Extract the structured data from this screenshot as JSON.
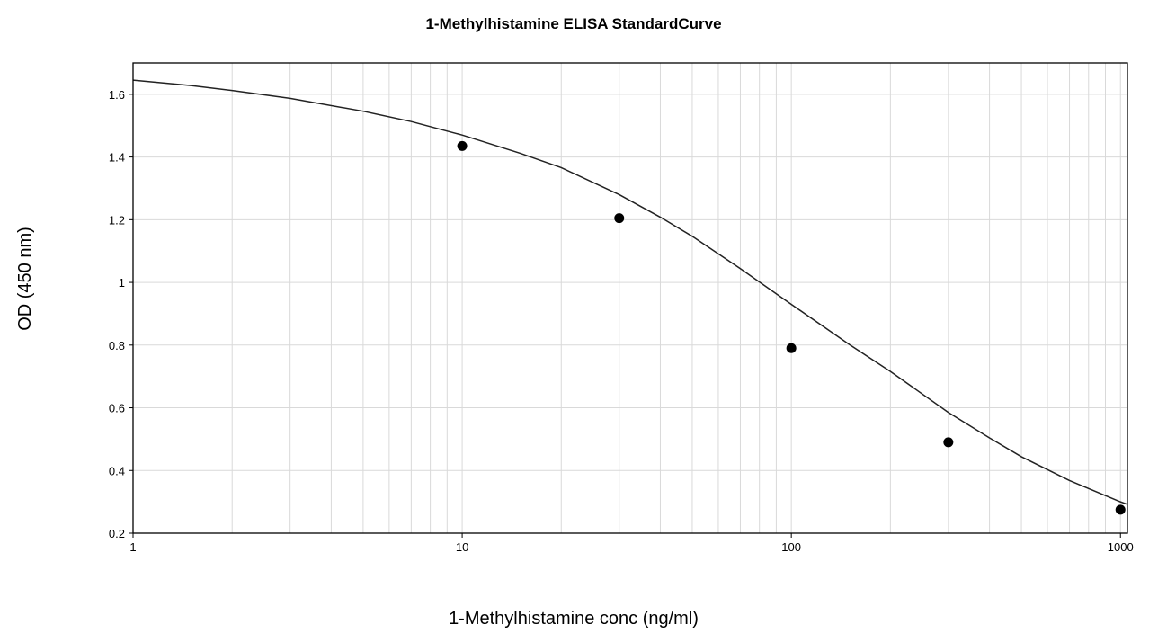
{
  "chart_data": {
    "type": "scatter",
    "title": "1-Methylhistamine ELISA StandardCurve",
    "xlabel": "1-Methylhistamine conc (ng/ml)",
    "ylabel": "OD (450 nm)",
    "x_scale": "log",
    "y_scale": "linear",
    "xlim": [
      1,
      1050
    ],
    "ylim": [
      0.2,
      1.7
    ],
    "x_ticks": [
      {
        "value": 1,
        "label": "1"
      },
      {
        "value": 10,
        "label": "10"
      },
      {
        "value": 100,
        "label": "100"
      },
      {
        "value": 1000,
        "label": "1000"
      }
    ],
    "y_ticks": [
      {
        "value": 0.2,
        "label": "0.2"
      },
      {
        "value": 0.4,
        "label": "0.4"
      },
      {
        "value": 0.6,
        "label": "0.6"
      },
      {
        "value": 0.8,
        "label": "0.8"
      },
      {
        "value": 1.0,
        "label": "1"
      },
      {
        "value": 1.2,
        "label": "1.2"
      },
      {
        "value": 1.4,
        "label": "1.4"
      },
      {
        "value": 1.6,
        "label": "1.6"
      }
    ],
    "grid": true,
    "legend": "none",
    "series": [
      {
        "type": "scatter",
        "x": [
          10,
          30,
          100,
          300,
          1000
        ],
        "y": [
          1.435,
          1.205,
          0.79,
          0.49,
          0.275
        ]
      },
      {
        "type": "line",
        "fit": "4PL",
        "x": [
          1,
          1.5,
          2,
          3,
          5,
          7,
          10,
          15,
          20,
          30,
          40,
          50,
          70,
          100,
          150,
          200,
          300,
          400,
          500,
          700,
          1000,
          1050
        ],
        "y": [
          1.645,
          1.628,
          1.612,
          1.587,
          1.546,
          1.513,
          1.47,
          1.412,
          1.366,
          1.28,
          1.208,
          1.147,
          1.044,
          0.93,
          0.802,
          0.716,
          0.585,
          0.504,
          0.444,
          0.368,
          0.3,
          0.292
        ]
      }
    ],
    "colors": {
      "points": "#000000",
      "curve": "#222222",
      "grid": "#d9d9d9",
      "frame": "#000000"
    }
  }
}
